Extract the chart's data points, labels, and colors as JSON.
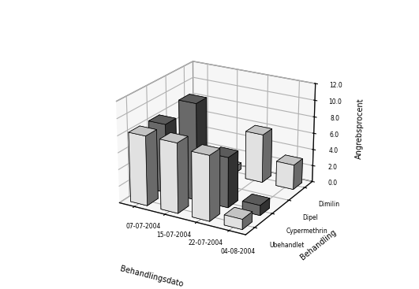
{
  "ylabel": "Angrebsprocent",
  "xlabel": "Behandlingsdato",
  "zlabel": "Behandling",
  "dates": [
    "07-07-2004",
    "15-07-2004",
    "22-07-2004",
    "04-08-2004"
  ],
  "treatments": [
    "Ubehandlet",
    "Cypermethrin",
    "Dipel",
    "Dimilin"
  ],
  "values": [
    [
      8.3,
      8.3,
      7.7,
      1.2
    ],
    [
      8.3,
      11.5,
      6.0,
      1.2
    ],
    [
      0.0,
      1.0,
      0.0,
      0.0
    ],
    [
      0.0,
      0.8,
      5.9,
      3.0
    ]
  ],
  "treatment_colors": [
    "white",
    "#777777",
    "#b0b0b0",
    "white"
  ],
  "treatment_edge_colors": [
    "black",
    "black",
    "black",
    "black"
  ],
  "ylim": [
    0,
    12
  ],
  "yticks": [
    0.0,
    2.0,
    4.0,
    6.0,
    8.0,
    10.0,
    12.0
  ],
  "background_color": "#ffffff",
  "pane_color": "#eeeeee",
  "figsize": [
    5.31,
    3.67
  ],
  "dpi": 100,
  "elev": 22,
  "azim": -60,
  "bar_width": 0.55,
  "bar_depth": 0.55
}
